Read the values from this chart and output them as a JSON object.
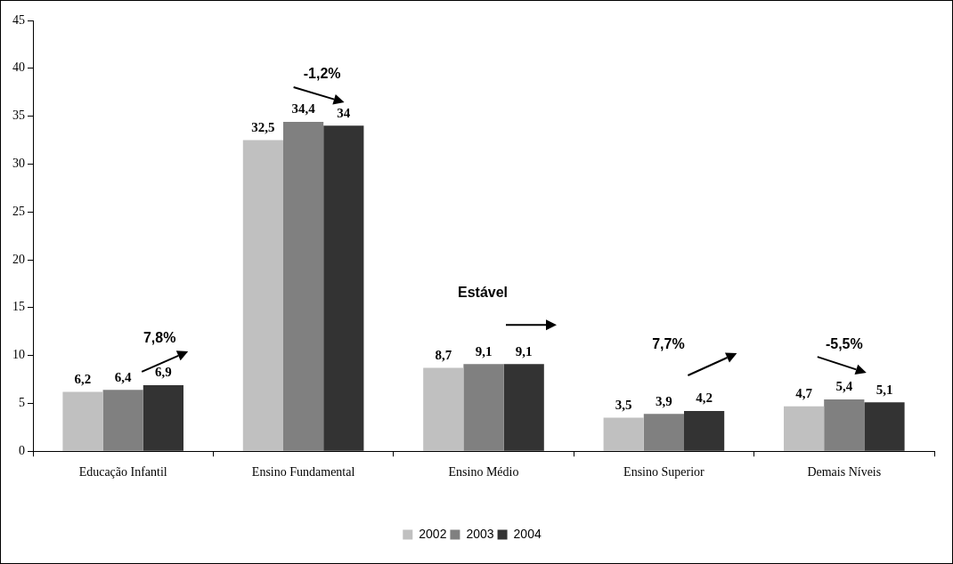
{
  "chart_data": {
    "type": "bar",
    "categories": [
      "Educação Infantil",
      "Ensino Fundamental",
      "Ensino Médio",
      "Ensino Superior",
      "Demais Níveis"
    ],
    "series": [
      {
        "name": "2002",
        "color": "#c0c0c0",
        "values": [
          6.2,
          32.5,
          8.7,
          3.5,
          4.7
        ],
        "value_labels": [
          "6,2",
          "32,5",
          "8,7",
          "3,5",
          "4,7"
        ]
      },
      {
        "name": "2003",
        "color": "#808080",
        "values": [
          6.4,
          34.4,
          9.1,
          3.9,
          5.4
        ],
        "value_labels": [
          "6,4",
          "34,4",
          "9,1",
          "3,9",
          "5,4"
        ]
      },
      {
        "name": "2004",
        "color": "#333333",
        "values": [
          6.9,
          34,
          9.1,
          4.2,
          5.1
        ],
        "value_labels": [
          "6,9",
          "34",
          "9,1",
          "4,2",
          "5,1"
        ]
      }
    ],
    "ylim": [
      0,
      45
    ],
    "yticks": [
      0,
      5,
      10,
      15,
      20,
      25,
      30,
      35,
      40,
      45
    ],
    "grid": false,
    "legend": "bottom",
    "annotations": [
      "7,8%",
      "-1,2%",
      "Estável",
      "7,7%",
      "-5,5%"
    ]
  }
}
